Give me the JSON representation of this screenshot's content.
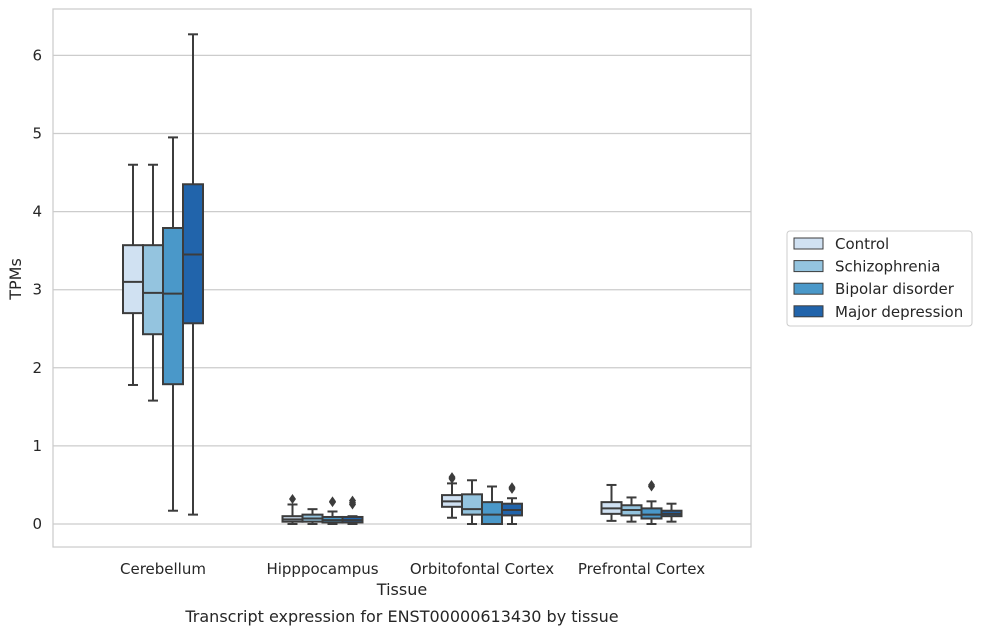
{
  "chart_data": {
    "type": "box",
    "caption": "Transcript expression for ENST00000613430 by tissue",
    "xlabel": "Tissue",
    "ylabel": "TPMs",
    "ylim": [
      -0.3,
      6.6
    ],
    "yticks": [
      "0",
      "1",
      "2",
      "3",
      "4",
      "5",
      "6"
    ],
    "categories": [
      "Cerebellum",
      "Hipppocampus",
      "Orbitofontal Cortex",
      "Prefrontal Cortex"
    ],
    "grid": "horizontal",
    "legend_position": "right",
    "series": [
      {
        "name": "Control",
        "color": "#d0e1f2",
        "boxes": [
          {
            "whislo": 1.78,
            "q1": 2.7,
            "med": 3.1,
            "q3": 3.57,
            "whishi": 4.6,
            "fliers": []
          },
          {
            "whislo": 0.0,
            "q1": 0.03,
            "med": 0.06,
            "q3": 0.1,
            "whishi": 0.25,
            "fliers": [
              0.32
            ]
          },
          {
            "whislo": 0.08,
            "q1": 0.22,
            "med": 0.29,
            "q3": 0.37,
            "whishi": 0.52,
            "fliers": [
              0.58,
              0.6
            ]
          },
          {
            "whislo": 0.04,
            "q1": 0.13,
            "med": 0.2,
            "q3": 0.28,
            "whishi": 0.5,
            "fliers": []
          }
        ]
      },
      {
        "name": "Schizophrenia",
        "color": "#94c4df",
        "boxes": [
          {
            "whislo": 1.58,
            "q1": 2.43,
            "med": 2.96,
            "q3": 3.57,
            "whishi": 4.6,
            "fliers": []
          },
          {
            "whislo": 0.0,
            "q1": 0.03,
            "med": 0.07,
            "q3": 0.12,
            "whishi": 0.19,
            "fliers": []
          },
          {
            "whislo": 0.0,
            "q1": 0.12,
            "med": 0.19,
            "q3": 0.38,
            "whishi": 0.56,
            "fliers": []
          },
          {
            "whislo": 0.03,
            "q1": 0.11,
            "med": 0.18,
            "q3": 0.24,
            "whishi": 0.34,
            "fliers": []
          }
        ]
      },
      {
        "name": "Bipolar disorder",
        "color": "#4a98c9",
        "boxes": [
          {
            "whislo": 0.17,
            "q1": 1.79,
            "med": 2.95,
            "q3": 3.79,
            "whishi": 4.95,
            "fliers": []
          },
          {
            "whislo": 0.0,
            "q1": 0.02,
            "med": 0.05,
            "q3": 0.09,
            "whishi": 0.16,
            "fliers": [
              0.28,
              0.29
            ]
          },
          {
            "whislo": 0.0,
            "q1": 0.0,
            "med": 0.12,
            "q3": 0.28,
            "whishi": 0.48,
            "fliers": []
          },
          {
            "whislo": 0.0,
            "q1": 0.07,
            "med": 0.12,
            "q3": 0.2,
            "whishi": 0.29,
            "fliers": [
              0.48,
              0.5
            ]
          }
        ]
      },
      {
        "name": "Major depression",
        "color": "#2164ab",
        "boxes": [
          {
            "whislo": 0.12,
            "q1": 2.57,
            "med": 3.45,
            "q3": 4.35,
            "whishi": 6.27,
            "fliers": []
          },
          {
            "whislo": 0.0,
            "q1": 0.02,
            "med": 0.05,
            "q3": 0.09,
            "whishi": 0.1,
            "fliers": [
              0.25,
              0.27,
              0.3
            ]
          },
          {
            "whislo": 0.0,
            "q1": 0.11,
            "med": 0.18,
            "q3": 0.26,
            "whishi": 0.33,
            "fliers": [
              0.45,
              0.47
            ]
          },
          {
            "whislo": 0.03,
            "q1": 0.1,
            "med": 0.13,
            "q3": 0.17,
            "whishi": 0.26,
            "fliers": []
          }
        ]
      }
    ]
  }
}
